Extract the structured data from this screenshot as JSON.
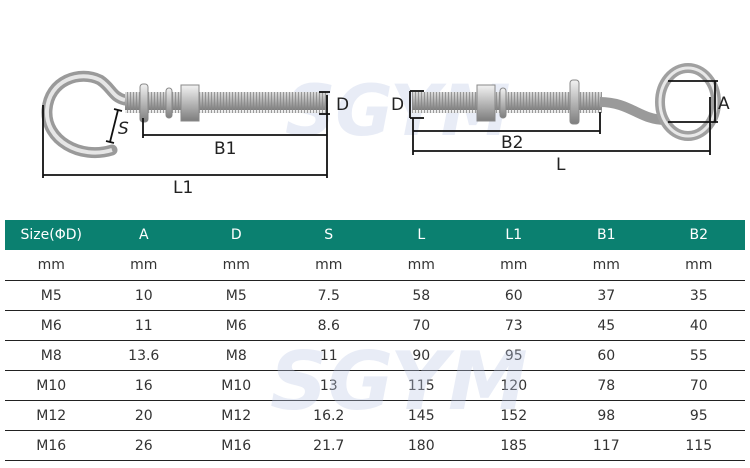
{
  "watermark": "SGYM",
  "diagram": {
    "hook_labels": {
      "s": "S",
      "b1": "B1",
      "l1": "L1",
      "d": "D"
    },
    "eye_labels": {
      "d": "D",
      "b2": "B2",
      "l": "L",
      "a": "A"
    }
  },
  "table": {
    "headers": [
      "Size(ΦD)",
      "A",
      "D",
      "S",
      "L",
      "L1",
      "B1",
      "B2"
    ],
    "units": [
      "mm",
      "mm",
      "mm",
      "mm",
      "mm",
      "mm",
      "mm",
      "mm"
    ],
    "rows": [
      [
        "M5",
        "10",
        "M5",
        "7.5",
        "58",
        "60",
        "37",
        "35"
      ],
      [
        "M6",
        "11",
        "M6",
        "8.6",
        "70",
        "73",
        "45",
        "40"
      ],
      [
        "M8",
        "13.6",
        "M8",
        "11",
        "90",
        "95",
        "60",
        "55"
      ],
      [
        "M10",
        "16",
        "M10",
        "13",
        "115",
        "120",
        "78",
        "70"
      ],
      [
        "M12",
        "20",
        "M12",
        "16.2",
        "145",
        "152",
        "98",
        "95"
      ],
      [
        "M16",
        "26",
        "M16",
        "21.7",
        "180",
        "185",
        "117",
        "115"
      ]
    ]
  },
  "colors": {
    "header_bg": "#0b8070",
    "header_text": "#ffffff"
  }
}
